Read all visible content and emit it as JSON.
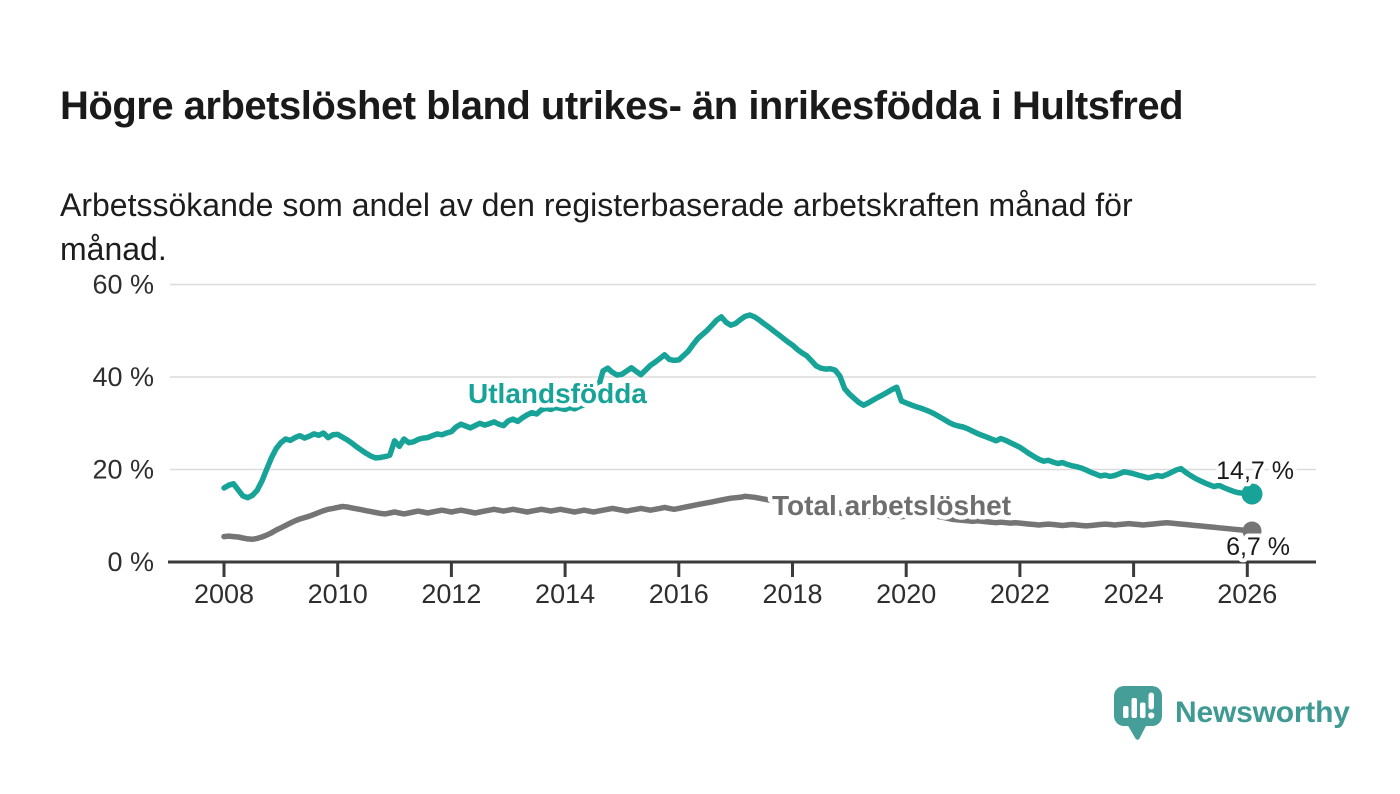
{
  "title": "Högre arbetslöshet bland utrikes- än inrikesfödda i Hultsfred",
  "subtitle_line1": "Arbetssökande som andel av den registerbaserade arbetskraften månad för",
  "subtitle_line2": "månad.",
  "branding": {
    "logo_text": "Newsworthy",
    "logo_icon": "newsworthy-speech-bubble-barchart-icon",
    "brand_color": "#459e97",
    "brand_text_color": "#3f9a94"
  },
  "colors": {
    "foreign_born_line": "#17a398",
    "total_line": "#757575",
    "total_label": "#6e6e6e",
    "axis": "#3b3b3b",
    "grid": "#dcdcdc",
    "text": "#1a1a1a",
    "background": "#ffffff"
  },
  "chart_data": {
    "type": "line",
    "frequency": "monthly",
    "x_start": "2008-01",
    "x_end": "2026-02",
    "x_axis": {
      "start_year": 2008,
      "tick_years": [
        2008,
        2010,
        2012,
        2014,
        2016,
        2018,
        2020,
        2022,
        2024,
        2026
      ],
      "tick_labels": [
        "2008",
        "2010",
        "2012",
        "2014",
        "2016",
        "2018",
        "2020",
        "2022",
        "2024",
        "2026"
      ]
    },
    "y_axis": {
      "ylim": [
        0,
        62
      ],
      "ticks": [
        0,
        20,
        40,
        60
      ],
      "tick_labels": [
        "0 %",
        "20 %",
        "40 %",
        "60 %"
      ]
    },
    "legend_position": "inline-labels",
    "grid": "horizontal-only",
    "series": [
      {
        "name": "Utlandsfödda",
        "label": "Utlandsfödda",
        "color": "#17a398",
        "end_label": "14,7 %",
        "end_value": 14.7,
        "values": [
          16.0,
          16.6,
          16.9,
          15.6,
          14.3,
          13.9,
          14.4,
          15.5,
          17.5,
          20.0,
          22.5,
          24.5,
          25.8,
          26.6,
          26.3,
          26.9,
          27.3,
          26.8,
          27.2,
          27.7,
          27.4,
          27.9,
          26.9,
          27.5,
          27.6,
          27.0,
          26.4,
          25.7,
          24.9,
          24.2,
          23.5,
          22.9,
          22.5,
          22.6,
          22.8,
          23.1,
          26.2,
          25.0,
          26.6,
          25.8,
          26.0,
          26.5,
          26.8,
          26.9,
          27.3,
          27.7,
          27.5,
          27.9,
          28.2,
          29.2,
          29.8,
          29.4,
          29.0,
          29.5,
          30.0,
          29.6,
          29.9,
          30.3,
          29.8,
          29.5,
          30.5,
          30.9,
          30.4,
          31.2,
          31.8,
          32.3,
          32.0,
          32.9,
          33.2,
          33.0,
          33.4,
          33.2,
          33.0,
          33.4,
          33.1,
          33.6,
          34.0,
          34.2,
          34.4,
          37.8,
          41.3,
          41.9,
          41.0,
          40.4,
          40.6,
          41.3,
          42.0,
          41.2,
          40.5,
          41.5,
          42.5,
          43.2,
          44.0,
          44.8,
          43.8,
          43.6,
          43.7,
          44.6,
          45.6,
          47.0,
          48.3,
          49.2,
          50.1,
          51.2,
          52.3,
          53.0,
          51.8,
          51.2,
          51.6,
          52.4,
          53.1,
          53.4,
          53.0,
          52.3,
          51.5,
          50.8,
          50.0,
          49.2,
          48.4,
          47.6,
          46.9,
          46.0,
          45.2,
          44.6,
          43.5,
          42.4,
          41.9,
          41.7,
          41.8,
          41.5,
          40.2,
          37.5,
          36.3,
          35.4,
          34.5,
          33.9,
          34.4,
          35.0,
          35.6,
          36.1,
          36.7,
          37.3,
          37.8,
          34.8,
          34.4,
          34.0,
          33.6,
          33.3,
          32.9,
          32.5,
          32.0,
          31.4,
          30.8,
          30.2,
          29.7,
          29.4,
          29.2,
          28.8,
          28.3,
          27.8,
          27.4,
          27.0,
          26.6,
          26.2,
          26.7,
          26.3,
          25.8,
          25.3,
          24.8,
          24.1,
          23.4,
          22.8,
          22.2,
          21.8,
          22.0,
          21.6,
          21.3,
          21.5,
          21.1,
          20.8,
          20.6,
          20.3,
          19.9,
          19.4,
          19.0,
          18.6,
          18.8,
          18.5,
          18.7,
          19.1,
          19.5,
          19.3,
          19.1,
          18.8,
          18.5,
          18.2,
          18.4,
          18.7,
          18.5,
          18.9,
          19.4,
          19.9,
          20.2,
          19.4,
          18.7,
          18.1,
          17.6,
          17.1,
          16.7,
          16.3,
          16.6,
          16.1,
          15.7,
          15.3,
          15.0,
          14.9,
          14.8,
          14.7
        ]
      },
      {
        "name": "Total arbetslöshet",
        "label": "Total arbetslöshet",
        "color": "#757575",
        "end_label": "6,7 %",
        "end_value": 6.7,
        "values": [
          5.5,
          5.6,
          5.5,
          5.4,
          5.2,
          5.0,
          4.9,
          5.1,
          5.4,
          5.8,
          6.3,
          6.9,
          7.4,
          7.9,
          8.4,
          8.9,
          9.3,
          9.6,
          9.9,
          10.3,
          10.7,
          11.1,
          11.4,
          11.6,
          11.8,
          12.0,
          11.9,
          11.7,
          11.5,
          11.3,
          11.1,
          10.9,
          10.7,
          10.5,
          10.4,
          10.6,
          10.8,
          10.6,
          10.4,
          10.6,
          10.8,
          11.0,
          10.8,
          10.6,
          10.8,
          11.0,
          11.2,
          11.0,
          10.8,
          11.0,
          11.2,
          11.0,
          10.8,
          10.6,
          10.8,
          11.0,
          11.2,
          11.4,
          11.2,
          11.0,
          11.2,
          11.4,
          11.2,
          11.0,
          10.8,
          11.0,
          11.2,
          11.4,
          11.2,
          11.0,
          11.2,
          11.4,
          11.2,
          11.0,
          10.8,
          11.0,
          11.2,
          11.0,
          10.8,
          11.0,
          11.2,
          11.4,
          11.6,
          11.4,
          11.2,
          11.0,
          11.2,
          11.4,
          11.6,
          11.4,
          11.2,
          11.4,
          11.6,
          11.8,
          11.6,
          11.4,
          11.6,
          11.8,
          12.0,
          12.2,
          12.4,
          12.6,
          12.8,
          13.0,
          13.2,
          13.4,
          13.6,
          13.8,
          13.9,
          14.0,
          14.2,
          14.1,
          14.0,
          13.8,
          13.6,
          13.4,
          13.2,
          13.0,
          12.8,
          12.6,
          12.4,
          12.2,
          12.0,
          11.9,
          11.7,
          11.6,
          11.4,
          11.2,
          11.0,
          10.8,
          10.6,
          10.4,
          10.2,
          10.0,
          9.9,
          9.8,
          9.9,
          10.0,
          10.1,
          10.2,
          10.1,
          10.0,
          9.9,
          9.8,
          9.9,
          10.0,
          10.2,
          10.4,
          10.3,
          10.2,
          10.0,
          9.8,
          9.6,
          9.4,
          9.2,
          9.1,
          9.0,
          8.9,
          8.8,
          8.9,
          8.8,
          8.7,
          8.6,
          8.5,
          8.6,
          8.5,
          8.4,
          8.5,
          8.4,
          8.3,
          8.2,
          8.1,
          8.0,
          8.1,
          8.2,
          8.1,
          8.0,
          7.9,
          8.0,
          8.1,
          8.0,
          7.9,
          7.8,
          7.9,
          8.0,
          8.1,
          8.2,
          8.1,
          8.0,
          8.1,
          8.2,
          8.3,
          8.2,
          8.1,
          8.0,
          8.1,
          8.2,
          8.3,
          8.4,
          8.5,
          8.4,
          8.3,
          8.2,
          8.1,
          8.0,
          7.9,
          7.8,
          7.7,
          7.6,
          7.5,
          7.4,
          7.3,
          7.2,
          7.1,
          7.0,
          6.9,
          6.8,
          6.7
        ]
      }
    ]
  }
}
